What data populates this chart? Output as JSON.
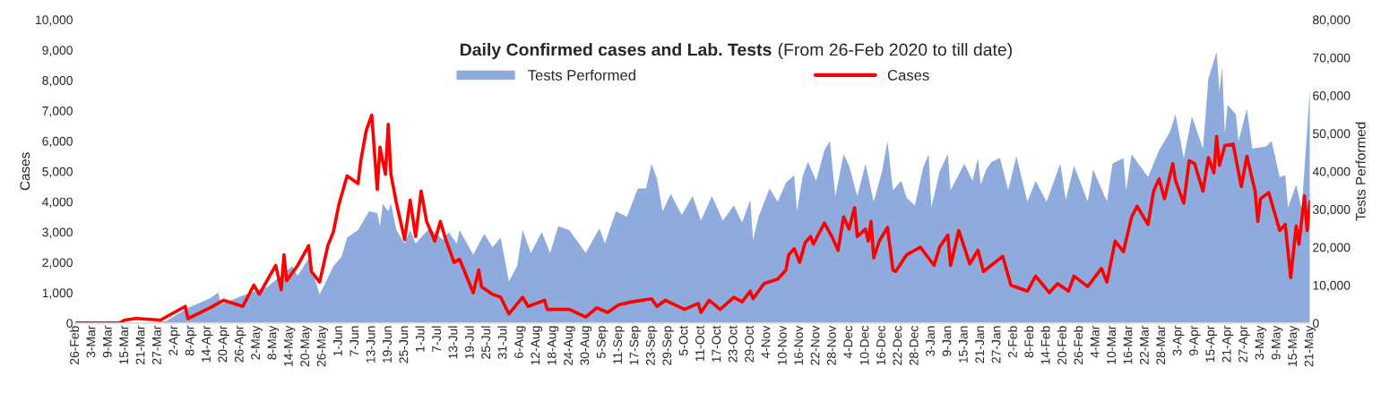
{
  "chart_data": {
    "type": "line",
    "title": "Daily Confirmed cases and Lab. Tests",
    "subtitle": "(From 26-Feb 2020 to till date)",
    "ylabel": "Cases",
    "y2label": "Tests Performed",
    "legend": "top",
    "grid": false,
    "xlim": [
      "2020-02-26",
      "2021-05-21"
    ],
    "xticks": [
      {
        "value": "2020-02-26",
        "label": "26-Feb"
      },
      {
        "value": "2020-03-03",
        "label": "3-Mar"
      },
      {
        "value": "2020-03-09",
        "label": "9-Mar"
      },
      {
        "value": "2020-03-15",
        "label": "15-Mar"
      },
      {
        "value": "2020-03-21",
        "label": "21-Mar"
      },
      {
        "value": "2020-03-27",
        "label": "27-Mar"
      },
      {
        "value": "2020-04-02",
        "label": "2-Apr"
      },
      {
        "value": "2020-04-08",
        "label": "8-Apr"
      },
      {
        "value": "2020-04-14",
        "label": "14-Apr"
      },
      {
        "value": "2020-04-20",
        "label": "20-Apr"
      },
      {
        "value": "2020-04-26",
        "label": "26-Apr"
      },
      {
        "value": "2020-05-02",
        "label": "2-May"
      },
      {
        "value": "2020-05-08",
        "label": "8-May"
      },
      {
        "value": "2020-05-14",
        "label": "14-May"
      },
      {
        "value": "2020-05-20",
        "label": "20-May"
      },
      {
        "value": "2020-05-26",
        "label": "26-May"
      },
      {
        "value": "2020-06-01",
        "label": "1-Jun"
      },
      {
        "value": "2020-06-07",
        "label": "7-Jun"
      },
      {
        "value": "2020-06-13",
        "label": "13-Jun"
      },
      {
        "value": "2020-06-19",
        "label": "19-Jun"
      },
      {
        "value": "2020-06-25",
        "label": "25-Jun"
      },
      {
        "value": "2020-07-01",
        "label": "1-Jul"
      },
      {
        "value": "2020-07-07",
        "label": "7-Jul"
      },
      {
        "value": "2020-07-13",
        "label": "13-Jul"
      },
      {
        "value": "2020-07-19",
        "label": "19-Jul"
      },
      {
        "value": "2020-07-25",
        "label": "25-Jul"
      },
      {
        "value": "2020-07-31",
        "label": "31-Jul"
      },
      {
        "value": "2020-08-06",
        "label": "6-Aug"
      },
      {
        "value": "2020-08-12",
        "label": "12-Aug"
      },
      {
        "value": "2020-08-18",
        "label": "18-Aug"
      },
      {
        "value": "2020-08-24",
        "label": "24-Aug"
      },
      {
        "value": "2020-08-30",
        "label": "30-Aug"
      },
      {
        "value": "2020-09-05",
        "label": "5-Sep"
      },
      {
        "value": "2020-09-11",
        "label": "11-Sep"
      },
      {
        "value": "2020-09-17",
        "label": "17-Sep"
      },
      {
        "value": "2020-09-23",
        "label": "23-Sep"
      },
      {
        "value": "2020-09-29",
        "label": "29-Sep"
      },
      {
        "value": "2020-10-05",
        "label": "5-Oct"
      },
      {
        "value": "2020-10-11",
        "label": "11-Oct"
      },
      {
        "value": "2020-10-17",
        "label": "17-Oct"
      },
      {
        "value": "2020-10-23",
        "label": "23-Oct"
      },
      {
        "value": "2020-10-29",
        "label": "29-Oct"
      },
      {
        "value": "2020-11-04",
        "label": "4-Nov"
      },
      {
        "value": "2020-11-10",
        "label": "10-Nov"
      },
      {
        "value": "2020-11-16",
        "label": "16-Nov"
      },
      {
        "value": "2020-11-22",
        "label": "22-Nov"
      },
      {
        "value": "2020-11-28",
        "label": "28-Nov"
      },
      {
        "value": "2020-12-04",
        "label": "4-Dec"
      },
      {
        "value": "2020-12-10",
        "label": "10-Dec"
      },
      {
        "value": "2020-12-16",
        "label": "16-Dec"
      },
      {
        "value": "2020-12-22",
        "label": "22-Dec"
      },
      {
        "value": "2020-12-28",
        "label": "28-Dec"
      },
      {
        "value": "2021-01-03",
        "label": "3-Jan"
      },
      {
        "value": "2021-01-09",
        "label": "9-Jan"
      },
      {
        "value": "2021-01-15",
        "label": "15-Jan"
      },
      {
        "value": "2021-01-21",
        "label": "21-Jan"
      },
      {
        "value": "2021-01-27",
        "label": "27-Jan"
      },
      {
        "value": "2021-02-02",
        "label": "2-Feb"
      },
      {
        "value": "2021-02-08",
        "label": "8-Feb"
      },
      {
        "value": "2021-02-14",
        "label": "14-Feb"
      },
      {
        "value": "2021-02-20",
        "label": "20-Feb"
      },
      {
        "value": "2021-02-26",
        "label": "26-Feb"
      },
      {
        "value": "2021-03-04",
        "label": "4-Mar"
      },
      {
        "value": "2021-03-10",
        "label": "10-Mar"
      },
      {
        "value": "2021-03-16",
        "label": "16-Mar"
      },
      {
        "value": "2021-03-22",
        "label": "22-Mar"
      },
      {
        "value": "2021-03-28",
        "label": "28-Mar"
      },
      {
        "value": "2021-04-03",
        "label": "3-Apr"
      },
      {
        "value": "2021-04-09",
        "label": "9-Apr"
      },
      {
        "value": "2021-04-15",
        "label": "15-Apr"
      },
      {
        "value": "2021-04-21",
        "label": "21-Apr"
      },
      {
        "value": "2021-04-27",
        "label": "27-Apr"
      },
      {
        "value": "2021-05-03",
        "label": "3-May"
      },
      {
        "value": "2021-05-09",
        "label": "9-May"
      },
      {
        "value": "2021-05-15",
        "label": "15-May"
      },
      {
        "value": "2021-05-21",
        "label": "21-May"
      }
    ],
    "ylim": [
      0,
      10000
    ],
    "yticks": [
      0,
      {
        "value": 1000,
        "label": "1,000"
      },
      {
        "value": 2000,
        "label": "2,000"
      },
      {
        "value": 3000,
        "label": "3,000"
      },
      {
        "value": 4000,
        "label": "4,000"
      },
      {
        "value": 5000,
        "label": "5,000"
      },
      {
        "value": 6000,
        "label": "6,000"
      },
      {
        "value": 7000,
        "label": "7,000"
      },
      {
        "value": 8000,
        "label": "8,000"
      },
      {
        "value": 9000,
        "label": "9,000"
      },
      {
        "value": 10000,
        "label": "10,000"
      }
    ],
    "y2lim": [
      0,
      80000
    ],
    "y2ticks": [
      0,
      {
        "value": 10000,
        "label": "10,000"
      },
      {
        "value": 20000,
        "label": "20,000"
      },
      {
        "value": 30000,
        "label": "30,000"
      },
      {
        "value": 40000,
        "label": "40,000"
      },
      {
        "value": 50000,
        "label": "50,000"
      },
      {
        "value": 60000,
        "label": "60,000"
      },
      {
        "value": 70000,
        "label": "70,000"
      },
      {
        "value": 80000,
        "label": "80,000"
      }
    ],
    "series": [
      {
        "name": "Tests Performed",
        "type": "area",
        "axis": "y2",
        "color": "#8faadc",
        "x": [
          "2020-02-26",
          "2020-03-22",
          "2020-03-30",
          "2020-04-07",
          "2020-04-15",
          "2020-04-18",
          "2020-04-19",
          "2020-04-26",
          "2020-04-30",
          "2020-05-06",
          "2020-05-15",
          "2020-05-17",
          "2020-05-21",
          "2020-05-25",
          "2020-05-28",
          "2020-05-30",
          "2020-06-02",
          "2020-06-04",
          "2020-06-08",
          "2020-06-12",
          "2020-06-15",
          "2020-06-16",
          "2020-06-17",
          "2020-06-19",
          "2020-06-20",
          "2020-06-22",
          "2020-06-25",
          "2020-06-27",
          "2020-06-29",
          "2020-07-04",
          "2020-07-09",
          "2020-07-11",
          "2020-07-14",
          "2020-07-15",
          "2020-07-20",
          "2020-07-24",
          "2020-07-27",
          "2020-07-30",
          "2020-08-02",
          "2020-08-05",
          "2020-08-07",
          "2020-08-10",
          "2020-08-14",
          "2020-08-17",
          "2020-08-20",
          "2020-08-24",
          "2020-08-30",
          "2020-09-04",
          "2020-09-06",
          "2020-09-10",
          "2020-09-14",
          "2020-09-18",
          "2020-09-21",
          "2020-09-23",
          "2020-09-25",
          "2020-09-27",
          "2020-09-30",
          "2020-10-04",
          "2020-10-08",
          "2020-10-11",
          "2020-10-15",
          "2020-10-19",
          "2020-10-23",
          "2020-10-26",
          "2020-10-29",
          "2020-10-30",
          "2020-11-01",
          "2020-11-05",
          "2020-11-08",
          "2020-11-11",
          "2020-11-14",
          "2020-11-15",
          "2020-11-17",
          "2020-11-19",
          "2020-11-22",
          "2020-11-25",
          "2020-11-27",
          "2020-11-29",
          "2020-12-02",
          "2020-12-04",
          "2020-12-07",
          "2020-12-10",
          "2020-12-13",
          "2020-12-16",
          "2020-12-18",
          "2020-12-20",
          "2020-12-23",
          "2020-12-25",
          "2020-12-28",
          "2020-12-31",
          "2021-01-02",
          "2021-01-03",
          "2021-01-06",
          "2021-01-09",
          "2021-01-10",
          "2021-01-15",
          "2021-01-18",
          "2021-01-20",
          "2021-01-21",
          "2021-01-23",
          "2021-01-25",
          "2021-01-28",
          "2021-01-31",
          "2021-02-03",
          "2021-02-07",
          "2021-02-10",
          "2021-02-14",
          "2021-02-19",
          "2021-02-21",
          "2021-02-24",
          "2021-03-01",
          "2021-03-03",
          "2021-03-08",
          "2021-03-10",
          "2021-03-14",
          "2021-03-15",
          "2021-03-17",
          "2021-03-23",
          "2021-03-27",
          "2021-03-31",
          "2021-04-02",
          "2021-04-05",
          "2021-04-08",
          "2021-04-12",
          "2021-04-14",
          "2021-04-17",
          "2021-04-18",
          "2021-04-19",
          "2021-04-20",
          "2021-04-21",
          "2021-04-24",
          "2021-04-25",
          "2021-04-28",
          "2021-04-30",
          "2021-05-05",
          "2021-05-07",
          "2021-05-10",
          "2021-05-12",
          "2021-05-13",
          "2021-05-16",
          "2021-05-18",
          "2021-05-20",
          "2021-05-21"
        ],
        "values": [
          0,
          0,
          500,
          4000,
          6500,
          8000,
          5000,
          7000,
          8000,
          9500,
          15000,
          12500,
          17000,
          7500,
          12000,
          15000,
          17500,
          22500,
          24500,
          29500,
          29000,
          25500,
          31500,
          29500,
          31500,
          24500,
          21000,
          24500,
          21000,
          25000,
          22000,
          24000,
          21000,
          24500,
          18000,
          23500,
          20000,
          22500,
          11000,
          15000,
          24500,
          18500,
          24000,
          18500,
          25500,
          24500,
          18500,
          25000,
          21000,
          29500,
          28000,
          35500,
          35500,
          42000,
          38000,
          29500,
          34000,
          28500,
          33500,
          27000,
          33500,
          27000,
          31000,
          26500,
          32500,
          22000,
          28000,
          35500,
          32000,
          37000,
          39000,
          29500,
          38500,
          42500,
          37500,
          45500,
          48000,
          33500,
          44500,
          41500,
          33500,
          42000,
          32000,
          40000,
          48000,
          35000,
          37500,
          33000,
          31000,
          41000,
          44500,
          30500,
          40000,
          44500,
          35000,
          42000,
          37500,
          43500,
          36500,
          40500,
          42500,
          43500,
          35000,
          44000,
          32000,
          37500,
          32000,
          42000,
          32500,
          41500,
          32000,
          40500,
          32000,
          42000,
          43500,
          35000,
          44500,
          38500,
          45500,
          50500,
          55000,
          43500,
          54500,
          46000,
          64500,
          71500,
          61000,
          67500,
          50000,
          57500,
          55000,
          48000,
          56500,
          46000,
          46500,
          48000,
          38500,
          39000,
          30500,
          36500,
          30000,
          51000,
          62000
        ]
      },
      {
        "name": "Cases",
        "color": "#ff0000",
        "x": [
          "2020-02-26",
          "2020-03-13",
          "2020-03-15",
          "2020-03-19",
          "2020-03-28",
          "2020-04-06",
          "2020-04-07",
          "2020-04-15",
          "2020-04-20",
          "2020-04-27",
          "2020-05-01",
          "2020-05-03",
          "2020-05-09",
          "2020-05-11",
          "2020-05-12",
          "2020-05-13",
          "2020-05-17",
          "2020-05-21",
          "2020-05-22",
          "2020-05-25",
          "2020-05-28",
          "2020-05-30",
          "2020-06-01",
          "2020-06-04",
          "2020-06-08",
          "2020-06-09",
          "2020-06-11",
          "2020-06-13",
          "2020-06-15",
          "2020-06-16",
          "2020-06-18",
          "2020-06-19",
          "2020-06-20",
          "2020-06-22",
          "2020-06-25",
          "2020-06-27",
          "2020-06-29",
          "2020-07-01",
          "2020-07-03",
          "2020-07-06",
          "2020-07-08",
          "2020-07-10",
          "2020-07-13",
          "2020-07-15",
          "2020-07-20",
          "2020-07-22",
          "2020-07-23",
          "2020-07-27",
          "2020-07-30",
          "2020-08-02",
          "2020-08-07",
          "2020-08-09",
          "2020-08-15",
          "2020-08-16",
          "2020-08-24",
          "2020-08-30",
          "2020-09-03",
          "2020-09-07",
          "2020-09-11",
          "2020-09-16",
          "2020-09-23",
          "2020-09-25",
          "2020-09-28",
          "2020-10-05",
          "2020-10-10",
          "2020-10-11",
          "2020-10-14",
          "2020-10-18",
          "2020-10-23",
          "2020-10-26",
          "2020-10-29",
          "2020-10-30",
          "2020-11-03",
          "2020-11-08",
          "2020-11-11",
          "2020-11-12",
          "2020-11-14",
          "2020-11-16",
          "2020-11-18",
          "2020-11-20",
          "2020-11-21",
          "2020-11-25",
          "2020-11-28",
          "2020-11-30",
          "2020-12-02",
          "2020-12-04",
          "2020-12-06",
          "2020-12-07",
          "2020-12-10",
          "2020-12-11",
          "2020-12-12",
          "2020-12-13",
          "2020-12-15",
          "2020-12-18",
          "2020-12-20",
          "2020-12-21",
          "2020-12-25",
          "2020-12-30",
          "2021-01-04",
          "2021-01-06",
          "2021-01-09",
          "2021-01-10",
          "2021-01-13",
          "2021-01-17",
          "2021-01-20",
          "2021-01-22",
          "2021-01-29",
          "2021-02-01",
          "2021-02-07",
          "2021-02-10",
          "2021-02-15",
          "2021-02-18",
          "2021-02-22",
          "2021-02-24",
          "2021-03-01",
          "2021-03-06",
          "2021-03-08",
          "2021-03-11",
          "2021-03-14",
          "2021-03-17",
          "2021-03-19",
          "2021-03-23",
          "2021-03-25",
          "2021-03-27",
          "2021-03-29",
          "2021-04-01",
          "2021-04-02",
          "2021-04-05",
          "2021-04-07",
          "2021-04-09",
          "2021-04-12",
          "2021-04-14",
          "2021-04-16",
          "2021-04-17",
          "2021-04-18",
          "2021-04-20",
          "2021-04-23",
          "2021-04-26",
          "2021-04-28",
          "2021-05-01",
          "2021-05-02",
          "2021-05-03",
          "2021-05-06",
          "2021-05-10",
          "2021-05-12",
          "2021-05-14",
          "2021-05-16",
          "2021-05-17",
          "2021-05-19",
          "2021-05-20",
          "2021-05-21"
        ],
        "values": [
          0,
          0,
          100,
          150,
          100,
          550,
          150,
          500,
          750,
          550,
          1250,
          950,
          1900,
          1100,
          2250,
          1400,
          1900,
          2550,
          1700,
          1350,
          2550,
          3000,
          3900,
          4850,
          4600,
          5350,
          6350,
          6850,
          4400,
          5800,
          4900,
          6550,
          4900,
          3950,
          2750,
          4050,
          2850,
          4350,
          3350,
          2700,
          3350,
          2750,
          2000,
          2100,
          1000,
          1750,
          1200,
          950,
          850,
          300,
          850,
          550,
          750,
          450,
          450,
          200,
          500,
          350,
          600,
          700,
          800,
          550,
          750,
          450,
          650,
          350,
          750,
          450,
          850,
          700,
          1050,
          800,
          1300,
          1450,
          1750,
          2250,
          2450,
          2000,
          2650,
          2850,
          2600,
          3300,
          2800,
          2400,
          3500,
          3100,
          3800,
          2850,
          3100,
          2700,
          3350,
          2150,
          2700,
          3150,
          1750,
          1700,
          2250,
          2500,
          1900,
          2500,
          2900,
          1900,
          3050,
          1950,
          2400,
          1700,
          2200,
          1250,
          1050,
          1550,
          1000,
          1300,
          1050,
          1550,
          1200,
          1800,
          1350,
          2700,
          2350,
          3500,
          3850,
          3250,
          4350,
          4750,
          4100,
          5250,
          4700,
          3950,
          5350,
          5250,
          4350,
          5450,
          4950,
          6150,
          5200,
          5850,
          5900,
          4500,
          5500,
          4350,
          3350,
          4100,
          4300,
          3050,
          3250,
          1500,
          3200,
          2600,
          4200,
          3050,
          4000
        ]
      }
    ]
  }
}
